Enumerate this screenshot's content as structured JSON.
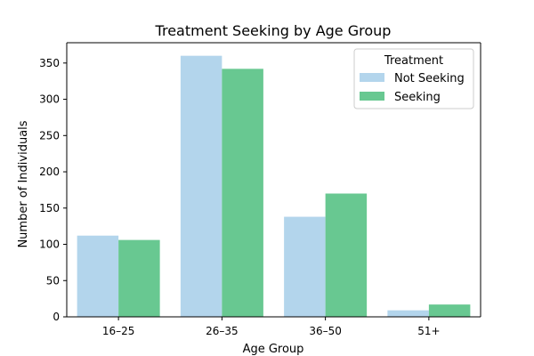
{
  "chart_data": {
    "type": "bar",
    "title": "Treatment Seeking by Age Group",
    "xlabel": "Age Group",
    "ylabel": "Number of Individuals",
    "categories": [
      "16–25",
      "26–35",
      "36–50",
      "51+"
    ],
    "series": [
      {
        "name": "Not Seeking",
        "values": [
          112,
          360,
          138,
          9
        ],
        "color": "#b3d5ec"
      },
      {
        "name": "Seeking",
        "values": [
          106,
          342,
          170,
          17
        ],
        "color": "#68c891"
      }
    ],
    "ylim": [
      0,
      378
    ],
    "yticks": [
      "0",
      "50",
      "100",
      "150",
      "200",
      "250",
      "300",
      "350"
    ],
    "legend": {
      "title": "Treatment",
      "placement": "top-right"
    },
    "grid": false
  }
}
